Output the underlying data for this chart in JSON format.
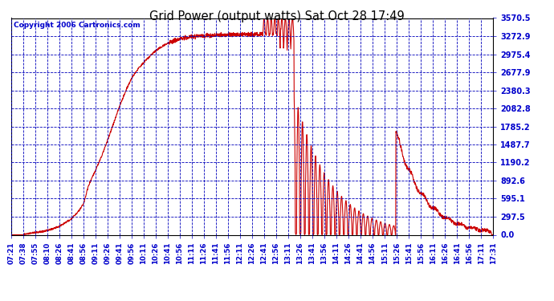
{
  "title": "Grid Power (output watts) Sat Oct 28 17:49",
  "copyright": "Copyright 2006 Cartronics.com",
  "line_color": "#cc0000",
  "bg_color": "#ffffff",
  "plot_bg_color": "#ffffff",
  "grid_color": "#0000bb",
  "axis_label_color": "#0000cc",
  "title_color": "#000000",
  "ylim": [
    0.0,
    3570.5
  ],
  "ytick_values": [
    0.0,
    297.5,
    595.1,
    892.6,
    1190.2,
    1487.7,
    1785.2,
    2082.8,
    2380.3,
    2677.9,
    2975.4,
    3272.9,
    3570.5
  ],
  "ytick_labels": [
    "0.0",
    "297.5",
    "595.1",
    "892.6",
    "1190.2",
    "1487.7",
    "1785.2",
    "2082.8",
    "2380.3",
    "2677.9",
    "2975.4",
    "3272.9",
    "3570.5"
  ],
  "xtick_labels": [
    "07:21",
    "07:38",
    "07:55",
    "08:10",
    "08:26",
    "08:41",
    "08:56",
    "09:11",
    "09:26",
    "09:41",
    "09:56",
    "10:11",
    "10:26",
    "10:41",
    "10:56",
    "11:11",
    "11:26",
    "11:41",
    "11:56",
    "12:11",
    "12:26",
    "12:41",
    "12:56",
    "13:11",
    "13:26",
    "13:41",
    "13:56",
    "14:11",
    "14:26",
    "14:41",
    "14:56",
    "15:11",
    "15:26",
    "15:41",
    "15:56",
    "16:11",
    "16:26",
    "16:41",
    "16:56",
    "17:11",
    "17:31"
  ],
  "n_xticks": 41,
  "total_minutes": 610,
  "line_width": 0.8
}
